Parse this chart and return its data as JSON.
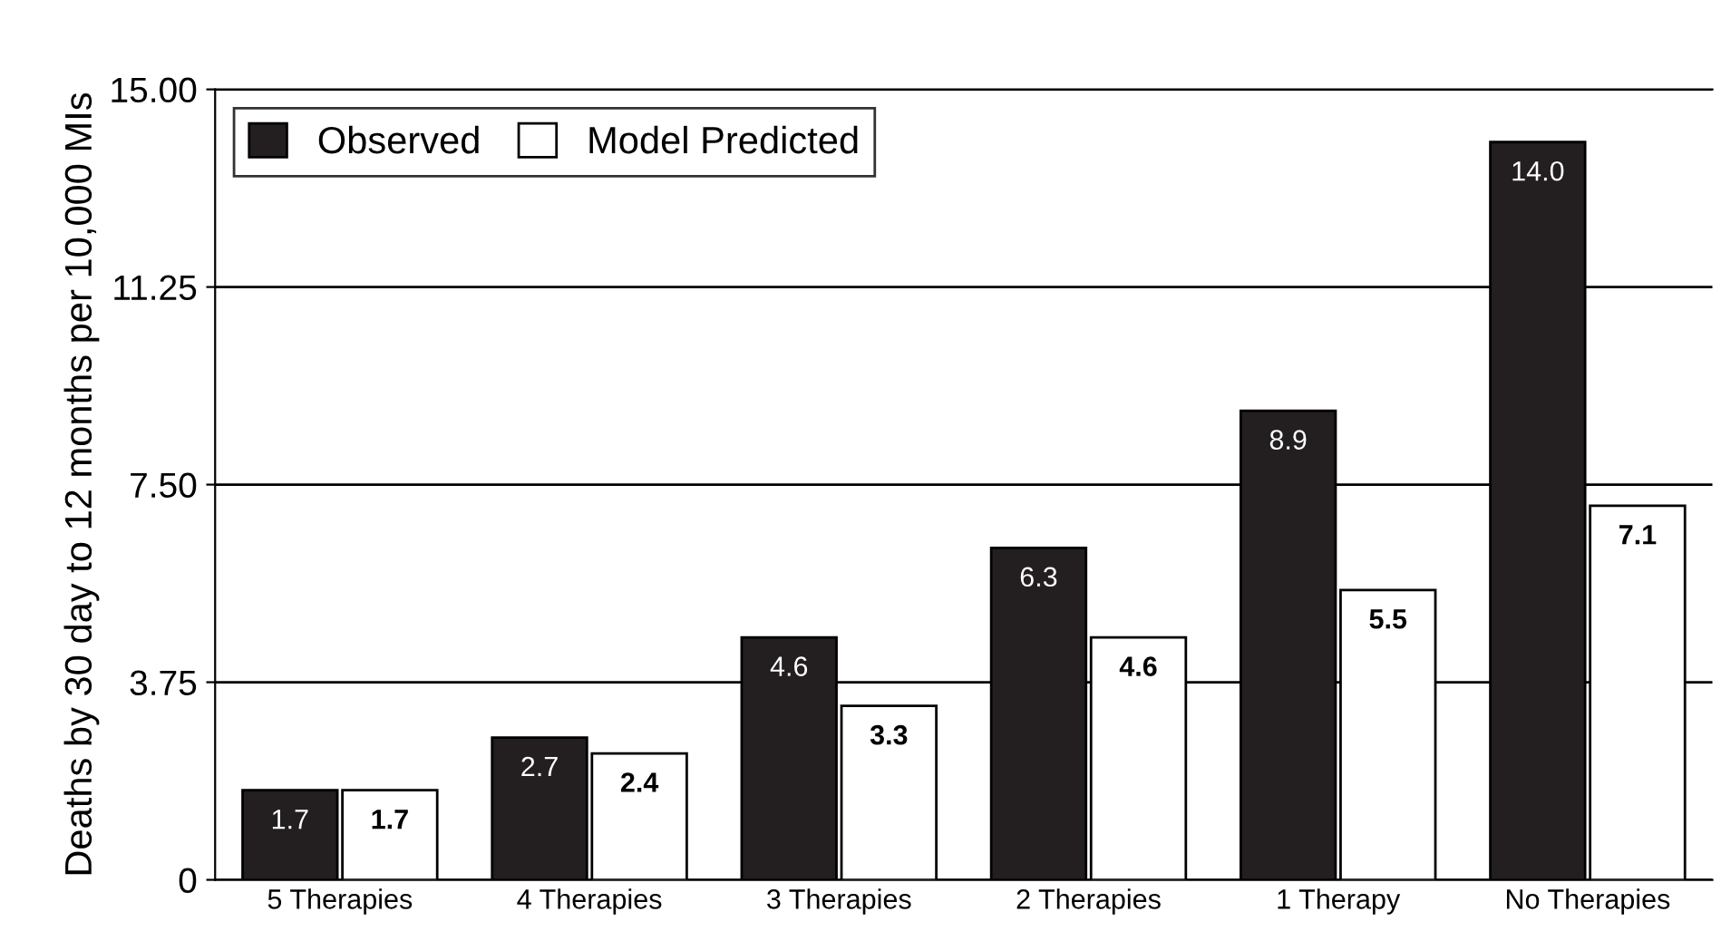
{
  "chart_data": {
    "type": "bar",
    "ylabel": "Deaths by 30 day to 12 months per 10,000 MIs",
    "categories": [
      "5 Therapies",
      "4 Therapies",
      "3 Therapies",
      "2 Therapies",
      "1 Therapy",
      "No Therapies"
    ],
    "series": [
      {
        "name": "Observed",
        "color": "#231f20",
        "values": [
          1.7,
          2.7,
          4.6,
          6.3,
          8.9,
          14.0
        ],
        "value_labels": [
          "1.7",
          "2.7",
          "4.6",
          "6.3",
          "8.9",
          "14.0"
        ]
      },
      {
        "name": "Model Predicted",
        "color": "#ffffff",
        "values": [
          1.7,
          2.4,
          3.3,
          4.6,
          5.5,
          7.1
        ],
        "value_labels": [
          "1.7",
          "2.4",
          "3.3",
          "4.6",
          "5.5",
          "7.1"
        ]
      }
    ],
    "ylim": [
      0,
      15
    ],
    "yticks": [
      0,
      3.75,
      {
        "value": 7.5,
        "label": "7.50"
      },
      11.25,
      {
        "value": 15,
        "label": "15.00"
      }
    ],
    "grid": "y",
    "legend": "top left"
  }
}
